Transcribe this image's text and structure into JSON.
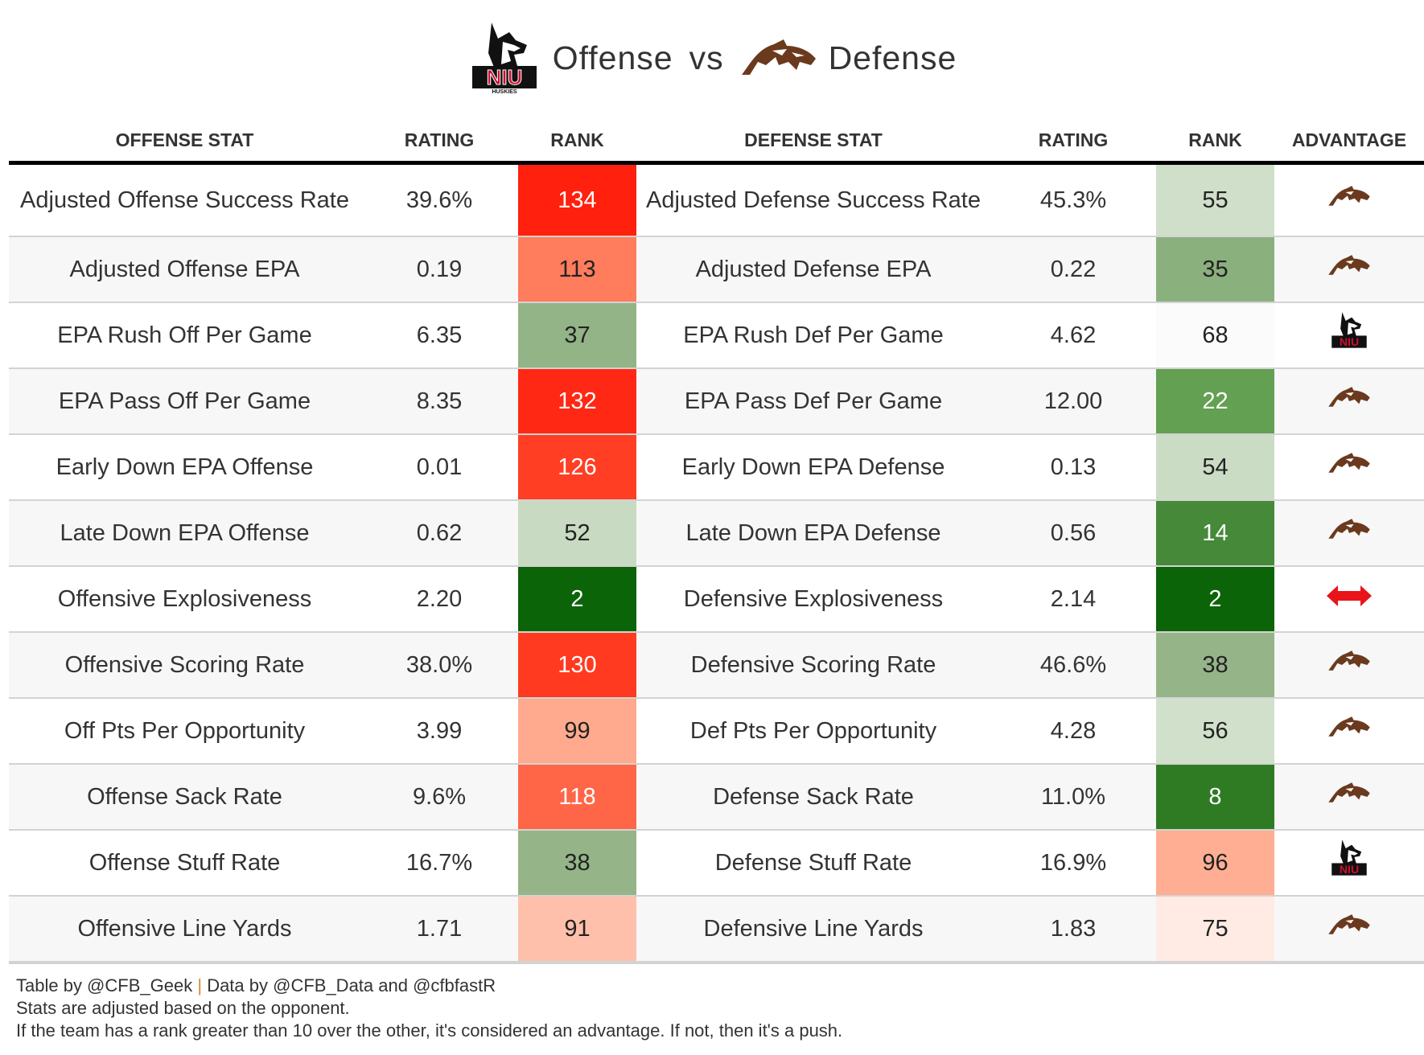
{
  "title": {
    "offense_word": "Offense",
    "vs": "vs",
    "defense_word": "Defense",
    "offense_logo": "niu-huskies-logo",
    "offense_logo_text": "NIU HUSKIES",
    "defense_logo": "western-michigan-bronco-logo"
  },
  "headers": [
    "OFFENSE STAT",
    "RATING",
    "RANK",
    "DEFENSE STAT",
    "RATING",
    "RANK",
    "ADVANTAGE"
  ],
  "colors": {
    "push": "#e8141a",
    "bronco": "#6b3a1e",
    "niu_red": "#c8102e"
  },
  "rows": [
    {
      "off_stat": "Adjusted Offense Success Rate",
      "off_rating": "39.6%",
      "off_rank": "134",
      "off_color": "#ff200e",
      "off_text": "#fff",
      "def_stat": "Adjusted Defense Success Rate",
      "def_rating": "45.3%",
      "def_rank": "55",
      "def_color": "#cfdfc9",
      "def_text": "#222",
      "advantage": "defense"
    },
    {
      "off_stat": "Adjusted Offense EPA",
      "off_rating": "0.19",
      "off_rank": "113",
      "off_color": "#ff7c5c",
      "off_text": "#222",
      "def_stat": "Adjusted Defense EPA",
      "def_rating": "0.22",
      "def_rank": "35",
      "def_color": "#8ab07d",
      "def_text": "#222",
      "advantage": "defense"
    },
    {
      "off_stat": "EPA Rush Off Per Game",
      "off_rating": "6.35",
      "off_rank": "37",
      "off_color": "#93b486",
      "off_text": "#222",
      "def_stat": "EPA Rush Def Per Game",
      "def_rating": "4.62",
      "def_rank": "68",
      "def_color": "#fbfbfb",
      "def_text": "#222",
      "advantage": "offense"
    },
    {
      "off_stat": "EPA Pass Off Per Game",
      "off_rating": "8.35",
      "off_rank": "132",
      "off_color": "#ff2814",
      "off_text": "#fff",
      "def_stat": "EPA Pass Def Per Game",
      "def_rating": "12.00",
      "def_rank": "22",
      "def_color": "#63a052",
      "def_text": "#fff",
      "advantage": "defense"
    },
    {
      "off_stat": "Early Down EPA Offense",
      "off_rating": "0.01",
      "off_rank": "126",
      "off_color": "#ff3e24",
      "off_text": "#fff",
      "def_stat": "Early Down EPA Defense",
      "def_rating": "0.13",
      "def_rank": "54",
      "def_color": "#cbdcc4",
      "def_text": "#222",
      "advantage": "defense"
    },
    {
      "off_stat": "Late Down EPA Offense",
      "off_rating": "0.62",
      "off_rank": "52",
      "off_color": "#c8dac1",
      "off_text": "#222",
      "def_stat": "Late Down EPA Defense",
      "def_rating": "0.56",
      "def_rank": "14",
      "def_color": "#458939",
      "def_text": "#fff",
      "advantage": "defense"
    },
    {
      "off_stat": "Offensive Explosiveness",
      "off_rating": "2.20",
      "off_rank": "2",
      "off_color": "#0b6408",
      "off_text": "#fff",
      "def_stat": "Defensive Explosiveness",
      "def_rating": "2.14",
      "def_rank": "2",
      "def_color": "#0b6408",
      "def_text": "#fff",
      "advantage": "push"
    },
    {
      "off_stat": "Offensive Scoring Rate",
      "off_rating": "38.0%",
      "off_rank": "130",
      "off_color": "#ff3a20",
      "off_text": "#fff",
      "def_stat": "Defensive Scoring Rate",
      "def_rating": "46.6%",
      "def_rank": "38",
      "def_color": "#95b588",
      "def_text": "#222",
      "advantage": "defense"
    },
    {
      "off_stat": "Off Pts Per Opportunity",
      "off_rating": "3.99",
      "off_rank": "99",
      "off_color": "#ffaa8e",
      "off_text": "#222",
      "def_stat": "Def Pts Per Opportunity",
      "def_rating": "4.28",
      "def_rank": "56",
      "def_color": "#d1e0cb",
      "def_text": "#222",
      "advantage": "defense"
    },
    {
      "off_stat": "Offense Sack Rate",
      "off_rating": "9.6%",
      "off_rank": "118",
      "off_color": "#ff6647",
      "off_text": "#fff",
      "def_stat": "Defense Sack Rate",
      "def_rating": "11.0%",
      "def_rank": "8",
      "def_color": "#2e7b24",
      "def_text": "#fff",
      "advantage": "defense"
    },
    {
      "off_stat": "Offense Stuff Rate",
      "off_rating": "16.7%",
      "off_rank": "38",
      "off_color": "#95b588",
      "off_text": "#222",
      "def_stat": "Defense Stuff Rate",
      "def_rating": "16.9%",
      "def_rank": "96",
      "def_color": "#ffae93",
      "def_text": "#222",
      "advantage": "offense"
    },
    {
      "off_stat": "Offensive Line Yards",
      "off_rating": "1.71",
      "off_rank": "91",
      "off_color": "#ffc0ab",
      "off_text": "#222",
      "def_stat": "Defensive Line Yards",
      "def_rating": "1.83",
      "def_rank": "75",
      "def_color": "#ffebe3",
      "def_text": "#222",
      "advantage": "defense"
    }
  ],
  "footer": {
    "credit_table": "Table by @CFB_Geek",
    "separator": "|",
    "credit_data": "Data by @CFB_Data and @cfbfastR",
    "line2": "Stats are adjusted based on the opponent.",
    "line3": "If the team has a rank greater than 10 over the other, it's considered an advantage. If not, then it's a push."
  }
}
